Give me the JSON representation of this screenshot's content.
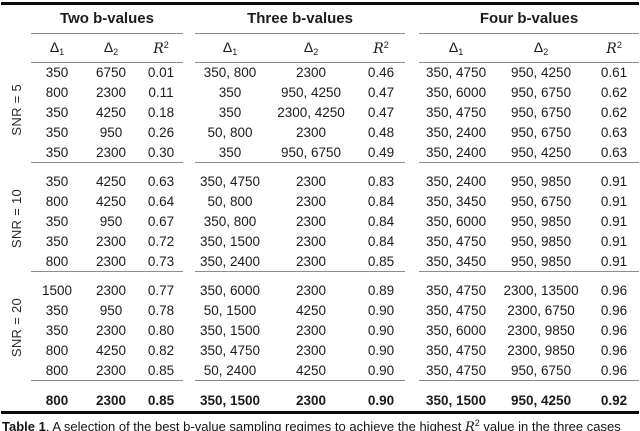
{
  "colors": {
    "text": "#1b1b1b",
    "rule_thin": "#8c8c8c",
    "rule_thick": "#0a0a0a"
  },
  "table": {
    "groups": [
      "Two b-values",
      "Three b-values",
      "Four b-values"
    ],
    "subheader": {
      "delta": "Δ",
      "sub1": "1",
      "sub2": "2",
      "r": "R",
      "rsup": "2"
    },
    "blocks": [
      {
        "snr": "SNR = 5",
        "rows": [
          [
            "350",
            "6750",
            "0.01",
            "350, 800",
            "2300",
            "0.46",
            "350, 4750",
            "950, 4250",
            "0.61"
          ],
          [
            "800",
            "2300",
            "0.11",
            "350",
            "950, 4250",
            "0.47",
            "350, 6000",
            "950, 6750",
            "0.62"
          ],
          [
            "350",
            "4250",
            "0.18",
            "350",
            "2300, 4250",
            "0.47",
            "350, 4750",
            "950, 6750",
            "0.62"
          ],
          [
            "350",
            "950",
            "0.26",
            "50, 800",
            "2300",
            "0.48",
            "350, 2400",
            "950, 6750",
            "0.63"
          ],
          [
            "350",
            "2300",
            "0.30",
            "350",
            "950, 6750",
            "0.49",
            "350, 2400",
            "950, 4250",
            "0.63"
          ]
        ]
      },
      {
        "snr": "SNR = 10",
        "rows": [
          [
            "350",
            "4250",
            "0.63",
            "350, 4750",
            "2300",
            "0.83",
            "350, 2400",
            "950, 9850",
            "0.91"
          ],
          [
            "800",
            "4250",
            "0.64",
            "50, 800",
            "2300",
            "0.84",
            "350, 3450",
            "950, 6750",
            "0.91"
          ],
          [
            "350",
            "950",
            "0.67",
            "350, 800",
            "2300",
            "0.84",
            "350, 6000",
            "950, 9850",
            "0.91"
          ],
          [
            "350",
            "2300",
            "0.72",
            "350, 1500",
            "2300",
            "0.84",
            "350, 4750",
            "950, 9850",
            "0.91"
          ],
          [
            "800",
            "2300",
            "0.73",
            "350, 2400",
            "2300",
            "0.85",
            "350, 3450",
            "950, 9850",
            "0.91"
          ]
        ]
      },
      {
        "snr": "SNR = 20",
        "rows": [
          [
            "1500",
            "2300",
            "0.77",
            "350, 6000",
            "2300",
            "0.89",
            "350, 4750",
            "2300, 13500",
            "0.96"
          ],
          [
            "350",
            "950",
            "0.78",
            "50, 1500",
            "4250",
            "0.90",
            "350, 4750",
            "2300, 6750",
            "0.96"
          ],
          [
            "350",
            "2300",
            "0.80",
            "350, 1500",
            "2300",
            "0.90",
            "350, 6000",
            "2300, 9850",
            "0.96"
          ],
          [
            "800",
            "4250",
            "0.82",
            "350, 4750",
            "2300",
            "0.90",
            "350, 4750",
            "2300, 9850",
            "0.96"
          ],
          [
            "800",
            "2300",
            "0.85",
            "50, 2400",
            "4250",
            "0.90",
            "350, 4750",
            "950, 6750",
            "0.96"
          ]
        ]
      }
    ],
    "summary": [
      "800",
      "2300",
      "0.85",
      "350, 1500",
      "2300",
      "0.90",
      "350, 1500",
      "950, 4250",
      "0.92"
    ]
  },
  "caption": {
    "label": "Table 1",
    "before_r": ". A selection of the best b-value sampling regimes to achieve the highest ",
    "r": "R",
    "r_sup": "2",
    "after_r": " value in the three cases"
  }
}
